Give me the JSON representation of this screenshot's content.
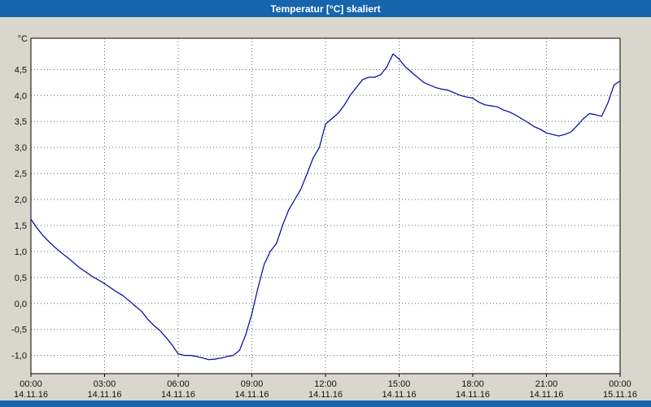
{
  "title_bar": {
    "title": "Temperatur [°C] skaliert",
    "background": "#1664ac",
    "text_color": "#ffffff"
  },
  "chart_data": {
    "type": "line",
    "title": "Temperatur [°C] skaliert",
    "y_unit_label": "°C",
    "xlabel": "",
    "ylabel": "",
    "grid": true,
    "grid_style": "dotted",
    "plot_background": "#ffffff",
    "line_color": "#0000a0",
    "ylim": [
      -1.35,
      5.1
    ],
    "xlim": [
      0,
      24
    ],
    "y_ticks": [
      {
        "value": 4.5,
        "label": "4,5"
      },
      {
        "value": 4.0,
        "label": "4,0"
      },
      {
        "value": 3.5,
        "label": "3,5"
      },
      {
        "value": 3.0,
        "label": "3,0"
      },
      {
        "value": 2.5,
        "label": "2,5"
      },
      {
        "value": 2.0,
        "label": "2,0"
      },
      {
        "value": 1.5,
        "label": "1,5"
      },
      {
        "value": 1.0,
        "label": "1,0"
      },
      {
        "value": 0.5,
        "label": "0,5"
      },
      {
        "value": 0.0,
        "label": "0,0"
      },
      {
        "value": -0.5,
        "label": "-0,5"
      },
      {
        "value": -1.0,
        "label": "-1,0"
      }
    ],
    "x_ticks": [
      {
        "hour": 0,
        "time": "00:00",
        "date": "14.11.16"
      },
      {
        "hour": 3,
        "time": "03:00",
        "date": "14.11.16"
      },
      {
        "hour": 6,
        "time": "06:00",
        "date": "14.11.16"
      },
      {
        "hour": 9,
        "time": "09:00",
        "date": "14.11.16"
      },
      {
        "hour": 12,
        "time": "12:00",
        "date": "14.11.16"
      },
      {
        "hour": 15,
        "time": "15:00",
        "date": "14.11.16"
      },
      {
        "hour": 18,
        "time": "18:00",
        "date": "14.11.16"
      },
      {
        "hour": 21,
        "time": "21:00",
        "date": "14.11.16"
      },
      {
        "hour": 24,
        "time": "00:00",
        "date": "15.11.16"
      }
    ],
    "series": [
      {
        "name": "Temperatur [°C] skaliert",
        "color": "#0000a0",
        "points": [
          [
            0.0,
            1.62
          ],
          [
            0.25,
            1.45
          ],
          [
            0.5,
            1.3
          ],
          [
            0.75,
            1.18
          ],
          [
            1.0,
            1.07
          ],
          [
            1.25,
            0.97
          ],
          [
            1.5,
            0.88
          ],
          [
            1.75,
            0.78
          ],
          [
            2.0,
            0.68
          ],
          [
            2.25,
            0.6
          ],
          [
            2.5,
            0.52
          ],
          [
            2.75,
            0.45
          ],
          [
            3.0,
            0.38
          ],
          [
            3.25,
            0.3
          ],
          [
            3.5,
            0.22
          ],
          [
            3.75,
            0.15
          ],
          [
            4.0,
            0.05
          ],
          [
            4.25,
            -0.05
          ],
          [
            4.5,
            -0.15
          ],
          [
            4.75,
            -0.3
          ],
          [
            5.0,
            -0.42
          ],
          [
            5.25,
            -0.52
          ],
          [
            5.5,
            -0.65
          ],
          [
            5.75,
            -0.8
          ],
          [
            6.0,
            -0.97
          ],
          [
            6.25,
            -1.0
          ],
          [
            6.5,
            -1.0
          ],
          [
            6.75,
            -1.02
          ],
          [
            7.0,
            -1.05
          ],
          [
            7.25,
            -1.08
          ],
          [
            7.5,
            -1.07
          ],
          [
            7.75,
            -1.05
          ],
          [
            8.0,
            -1.02
          ],
          [
            8.25,
            -1.0
          ],
          [
            8.5,
            -0.9
          ],
          [
            8.75,
            -0.6
          ],
          [
            9.0,
            -0.2
          ],
          [
            9.25,
            0.3
          ],
          [
            9.5,
            0.75
          ],
          [
            9.75,
            1.0
          ],
          [
            10.0,
            1.15
          ],
          [
            10.25,
            1.5
          ],
          [
            10.5,
            1.8
          ],
          [
            10.75,
            2.0
          ],
          [
            11.0,
            2.2
          ],
          [
            11.25,
            2.5
          ],
          [
            11.5,
            2.8
          ],
          [
            11.75,
            3.0
          ],
          [
            12.0,
            3.45
          ],
          [
            12.25,
            3.55
          ],
          [
            12.5,
            3.65
          ],
          [
            12.75,
            3.8
          ],
          [
            13.0,
            4.0
          ],
          [
            13.25,
            4.15
          ],
          [
            13.5,
            4.3
          ],
          [
            13.75,
            4.35
          ],
          [
            14.0,
            4.35
          ],
          [
            14.25,
            4.4
          ],
          [
            14.5,
            4.55
          ],
          [
            14.75,
            4.8
          ],
          [
            15.0,
            4.7
          ],
          [
            15.25,
            4.55
          ],
          [
            15.5,
            4.45
          ],
          [
            15.75,
            4.35
          ],
          [
            16.0,
            4.25
          ],
          [
            16.25,
            4.2
          ],
          [
            16.5,
            4.15
          ],
          [
            16.75,
            4.12
          ],
          [
            17.0,
            4.1
          ],
          [
            17.25,
            4.05
          ],
          [
            17.5,
            4.0
          ],
          [
            17.75,
            3.97
          ],
          [
            18.0,
            3.95
          ],
          [
            18.25,
            3.87
          ],
          [
            18.5,
            3.82
          ],
          [
            18.75,
            3.8
          ],
          [
            19.0,
            3.78
          ],
          [
            19.25,
            3.72
          ],
          [
            19.5,
            3.68
          ],
          [
            19.75,
            3.62
          ],
          [
            20.0,
            3.55
          ],
          [
            20.25,
            3.48
          ],
          [
            20.5,
            3.4
          ],
          [
            20.75,
            3.35
          ],
          [
            21.0,
            3.28
          ],
          [
            21.25,
            3.25
          ],
          [
            21.5,
            3.22
          ],
          [
            21.75,
            3.25
          ],
          [
            22.0,
            3.3
          ],
          [
            22.25,
            3.42
          ],
          [
            22.5,
            3.55
          ],
          [
            22.75,
            3.65
          ],
          [
            23.0,
            3.63
          ],
          [
            23.25,
            3.6
          ],
          [
            23.5,
            3.85
          ],
          [
            23.75,
            4.2
          ],
          [
            24.0,
            4.28
          ]
        ]
      }
    ]
  }
}
